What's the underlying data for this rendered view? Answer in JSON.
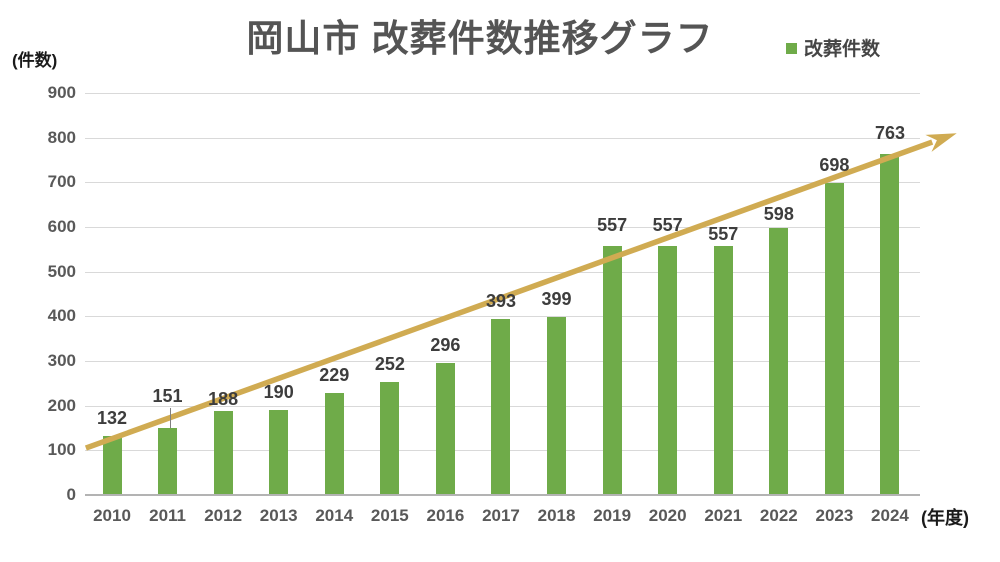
{
  "title": "岡山市 改葬件数推移グラフ",
  "legend": {
    "label": "改葬件数"
  },
  "axis_units": {
    "y": "(件数)",
    "x": "(年度)"
  },
  "chart_data": {
    "type": "bar",
    "title": "岡山市 改葬件数推移グラフ",
    "series_name": "改葬件数",
    "categories": [
      "2010",
      "2011",
      "2012",
      "2013",
      "2014",
      "2015",
      "2016",
      "2017",
      "2018",
      "2019",
      "2020",
      "2021",
      "2022",
      "2023",
      "2024"
    ],
    "values": [
      132,
      151,
      188,
      190,
      229,
      252,
      296,
      393,
      399,
      557,
      557,
      557,
      598,
      698,
      763
    ],
    "xlabel": "(年度)",
    "ylabel": "(件数)",
    "ylim": [
      0,
      900
    ],
    "yticks": [
      0,
      100,
      200,
      300,
      400,
      500,
      600,
      700,
      800,
      900
    ],
    "grid": true,
    "legend_position": "top-right",
    "bar_color": "#6fab49",
    "value_label_color": "#3d3d3d",
    "tick_color": "#595959",
    "gridline_color": "#d9d9d9",
    "axisline_color": "#b3b3b3",
    "annotation_arrow": {
      "description": "upward trend arrow from about value 105 at 2010 to about value 810 past 2024",
      "color": "#d0ab52",
      "start": {
        "x_index": -0.47,
        "value": 105
      },
      "end": {
        "x_index": 15.2,
        "value": 810
      }
    },
    "label_adjustments": {
      "1": {
        "dy": 14,
        "leader": true
      },
      "2": {
        "dy": -6
      },
      "9": {
        "dy": 3
      },
      "10": {
        "dy": 3
      },
      "11": {
        "dy": -6
      },
      "12": {
        "dy": -4
      },
      "14": {
        "dy": 3
      }
    }
  }
}
